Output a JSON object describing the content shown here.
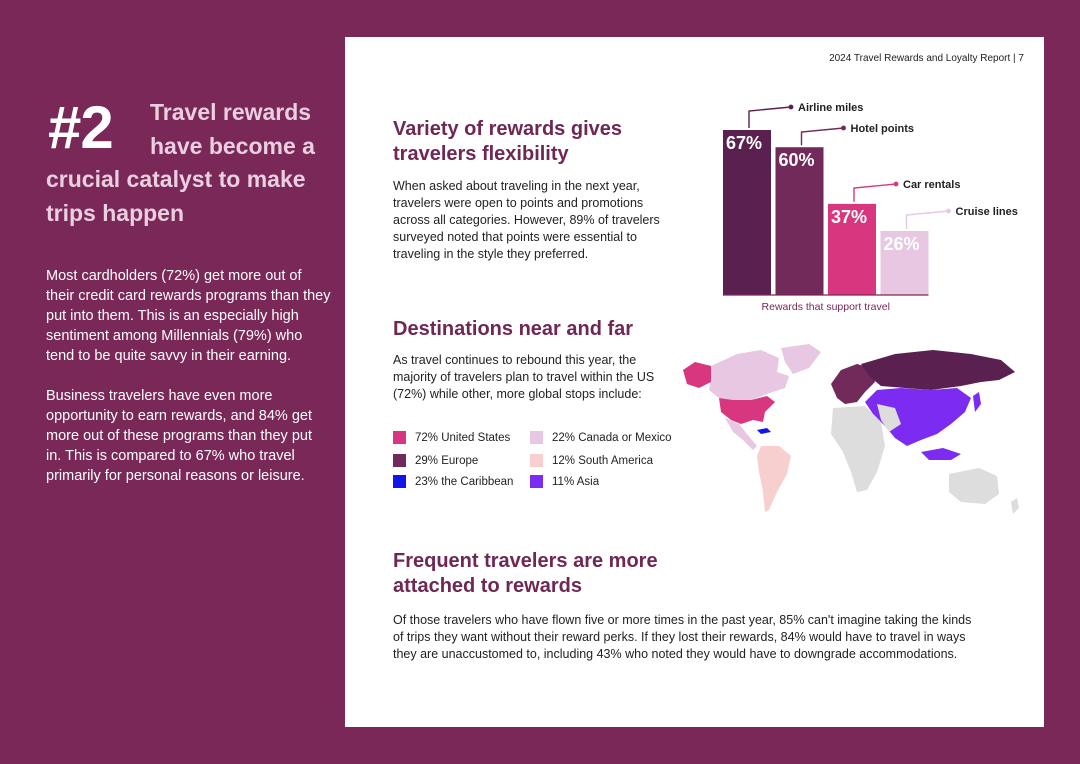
{
  "left": {
    "hero_number": "#2",
    "hero_line1": "Travel rewards",
    "hero_line2": "have become a",
    "hero_line3": "crucial catalyst to make trips happen",
    "para1": "Most cardholders (72%) get more out of their credit card rewards programs than they put into them. This is an especially high sentiment among Millennials (79%) who tend to be quite savvy in their earning.",
    "para2": "Business travelers have even more opportunity to earn rewards, and 84% get more out of these programs than they put in. This is compared to 67% who travel primarily for personal reasons or leisure."
  },
  "header": {
    "report": "2024 Travel Rewards and Loyalty Report | 7"
  },
  "section1": {
    "title": "Variety of rewards gives travelers flexibility",
    "body": "When asked about traveling in the next year, travelers were open to points and promotions across all categories. However, 89% of travelers surveyed noted that points were essential to traveling in the style they preferred."
  },
  "chart_data": {
    "type": "bar",
    "title": "",
    "xlabel": "Rewards that support travel",
    "ylabel": "",
    "ylim": [
      0,
      100
    ],
    "categories": [
      "Airline miles",
      "Hotel points",
      "Car rentals",
      "Cruise lines"
    ],
    "values": [
      67,
      60,
      37,
      26
    ],
    "value_labels": [
      "67%",
      "60%",
      "37%",
      "26%"
    ],
    "colors": [
      "#5a2150",
      "#722a5a",
      "#d8377f",
      "#e7c7e2"
    ],
    "label_colors": [
      "#ffffff",
      "#ffffff",
      "#ffffff",
      "#ffffff"
    ]
  },
  "section2": {
    "title": "Destinations near and far",
    "body": "As travel continues to rebound this year, the majority of travelers plan to travel within the US (72%) while other, more global stops include:",
    "legend": [
      {
        "label": "72% United States",
        "color": "#d8377f"
      },
      {
        "label": "22% Canada or Mexico",
        "color": "#e7c7e2"
      },
      {
        "label": "29% Europe",
        "color": "#722a5a"
      },
      {
        "label": "12% South America",
        "color": "#f8cfcf"
      },
      {
        "label": "23% the Caribbean",
        "color": "#1414e6"
      },
      {
        "label": "11% Asia",
        "color": "#7b2cf0"
      }
    ]
  },
  "section3": {
    "title": "Frequent travelers are more attached to rewards",
    "body": "Of those travelers who have flown five or more times in the past year, 85% can't imagine taking the kinds of trips they want without their reward perks. If they lost their rewards, 84% would have to travel in ways they are unaccustomed to, including 43% who noted they would have to downgrade accommodations."
  },
  "colors": {
    "background": "#7a2858",
    "title": "#6f2753",
    "hero_text": "#eacfe0",
    "other_land": "#dddddd"
  }
}
